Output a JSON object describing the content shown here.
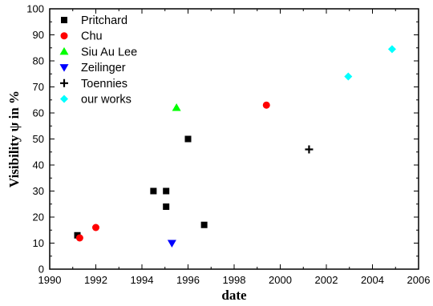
{
  "chart_data": {
    "type": "scatter",
    "title": "",
    "xlabel": "date",
    "ylabel": "Visibility ψ in %",
    "xlim": [
      1990,
      2006
    ],
    "ylim": [
      0,
      100
    ],
    "xticks": [
      1990,
      1992,
      1994,
      1996,
      1998,
      2000,
      2002,
      2004,
      2006
    ],
    "yticks": [
      0,
      10,
      20,
      30,
      40,
      50,
      60,
      70,
      80,
      90,
      100
    ],
    "grid": false,
    "legend_position": "top-left",
    "series": [
      {
        "name": "Pritchard",
        "marker": "square",
        "color": "#000000",
        "points": [
          [
            1991.2,
            13
          ],
          [
            1994.5,
            30
          ],
          [
            1995.05,
            30
          ],
          [
            1995.05,
            24
          ],
          [
            1996,
            50
          ],
          [
            1996.7,
            17
          ]
        ]
      },
      {
        "name": "Chu",
        "marker": "circle",
        "color": "#ff0000",
        "points": [
          [
            1991.3,
            12
          ],
          [
            1992,
            16
          ],
          [
            1999.4,
            63
          ]
        ]
      },
      {
        "name": "Siu Au Lee",
        "marker": "triangle-up",
        "color": "#00ff00",
        "points": [
          [
            1995.5,
            62
          ]
        ]
      },
      {
        "name": "Zeilinger",
        "marker": "triangle-down",
        "color": "#0000ff",
        "points": [
          [
            1995.3,
            10
          ]
        ]
      },
      {
        "name": "Toennies",
        "marker": "plus",
        "color": "#000000",
        "points": [
          [
            2001.25,
            46
          ]
        ]
      },
      {
        "name": "our works",
        "marker": "diamond",
        "color": "#00ffff",
        "points": [
          [
            2002.95,
            74
          ],
          [
            2004.85,
            84.5
          ]
        ]
      }
    ]
  }
}
